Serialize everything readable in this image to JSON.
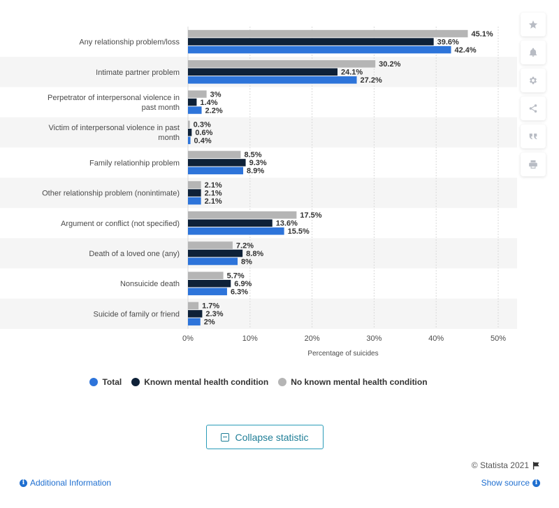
{
  "chart_data": {
    "type": "bar",
    "orientation": "horizontal",
    "categories": [
      "Any relationship problem/loss",
      "Intimate partner problem",
      "Perpetrator of interpersonal violence in past month",
      "Victim of interpersonal violence in past month",
      "Family relationhip problem",
      "Other relationship problem (nonintimate)",
      "Argument or conflict (not specified)",
      "Death of a loved one (any)",
      "Nonsuicide death",
      "Suicide of family or friend"
    ],
    "series": [
      {
        "name": "No known mental health condition",
        "color": "#b5b5b5",
        "values": [
          45.1,
          30.2,
          3,
          0.3,
          8.5,
          2.1,
          17.5,
          7.2,
          5.7,
          1.7
        ],
        "labels": [
          "45.1%",
          "30.2%",
          "3%",
          "0.3%",
          "8.5%",
          "2.1%",
          "17.5%",
          "7.2%",
          "5.7%",
          "1.7%"
        ]
      },
      {
        "name": "Known mental health condition",
        "color": "#0e2138",
        "values": [
          39.6,
          24.1,
          1.4,
          0.6,
          9.3,
          2.1,
          13.6,
          8.8,
          6.9,
          2.3
        ],
        "labels": [
          "39.6%",
          "24.1%",
          "1.4%",
          "0.6%",
          "9.3%",
          "2.1%",
          "13.6%",
          "8.8%",
          "6.9%",
          "2.3%"
        ]
      },
      {
        "name": "Total",
        "color": "#2d74da",
        "values": [
          42.4,
          27.2,
          2.2,
          0.4,
          8.9,
          2.1,
          15.5,
          8,
          6.3,
          2
        ],
        "labels": [
          "42.4%",
          "27.2%",
          "2.2%",
          "0.4%",
          "8.9%",
          "2.1%",
          "15.5%",
          "8%",
          "6.3%",
          "2%"
        ]
      }
    ],
    "xlim": [
      0,
      50
    ],
    "xticks": [
      0,
      10,
      20,
      30,
      40,
      50
    ],
    "xtick_labels": [
      "0%",
      "10%",
      "20%",
      "30%",
      "40%",
      "50%"
    ],
    "xlabel": "Percentage of suicides",
    "ylabel": "",
    "title": "",
    "grid": true,
    "legend": {
      "placement": "bottom",
      "items": [
        {
          "label": "Total",
          "color": "#2d74da"
        },
        {
          "label": "Known mental health condition",
          "color": "#0e2138"
        },
        {
          "label": "No known mental health condition",
          "color": "#b5b5b5"
        }
      ]
    }
  },
  "toolbar": {
    "icons": [
      "star-icon",
      "bell-icon",
      "gear-icon",
      "share-icon",
      "quote-icon",
      "print-icon"
    ]
  },
  "collapse_label": "Collapse statistic",
  "credit": "© Statista 2021",
  "additional_info": "Additional Information",
  "show_source": "Show source"
}
